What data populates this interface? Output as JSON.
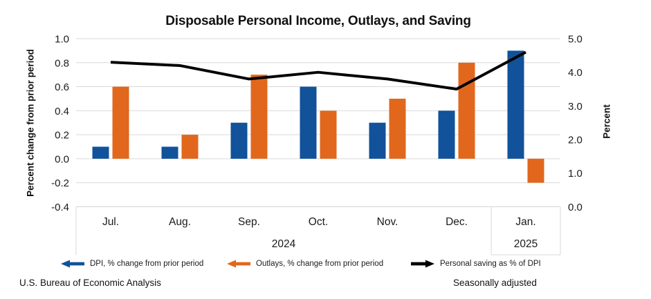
{
  "title": "Disposable Personal Income, Outlays, and Saving",
  "footer": {
    "left": "U.S. Bureau of Economic Analysis",
    "right": "Seasonally adjusted"
  },
  "legend": [
    {
      "label": "DPI, % change from prior period",
      "color": "#11529A",
      "arrow": "left"
    },
    {
      "label": "Outlays, % change from prior period",
      "color": "#E1671D",
      "arrow": "left"
    },
    {
      "label": "Personal saving as % of DPI",
      "color": "#000000",
      "arrow": "right"
    }
  ],
  "chart_data": {
    "type": "bar+line",
    "title": "Disposable Personal Income, Outlays, and Saving",
    "categories": [
      "Jul.",
      "Aug.",
      "Sep.",
      "Oct.",
      "Nov.",
      "Dec.",
      "Jan."
    ],
    "year_groups": [
      {
        "label": "2024",
        "start": 0,
        "end": 5
      },
      {
        "label": "2025",
        "start": 6,
        "end": 6
      }
    ],
    "series": [
      {
        "name": "DPI, % change from prior period",
        "type": "bar",
        "axis": "left",
        "color": "#11529A",
        "values": [
          0.1,
          0.1,
          0.3,
          0.6,
          0.3,
          0.4,
          0.9
        ]
      },
      {
        "name": "Outlays, % change from prior period",
        "type": "bar",
        "axis": "left",
        "color": "#E1671D",
        "values": [
          0.6,
          0.2,
          0.7,
          0.4,
          0.5,
          0.8,
          -0.2
        ]
      },
      {
        "name": "Personal saving as % of DPI",
        "type": "line",
        "axis": "right",
        "color": "#000000",
        "values": [
          4.3,
          4.2,
          3.8,
          4.0,
          3.8,
          3.5,
          4.6
        ]
      }
    ],
    "left_axis": {
      "title": "Percent change from prior period",
      "min": -0.4,
      "max": 1.0,
      "ticks": [
        1.0,
        0.8,
        0.6,
        0.4,
        0.2,
        0.0,
        -0.2,
        -0.4
      ]
    },
    "right_axis": {
      "title": "Percent",
      "min": 0.0,
      "max": 5.0,
      "ticks": [
        5.0,
        4.0,
        3.0,
        2.0,
        1.0,
        0.0
      ]
    },
    "grid": true,
    "gridline_color": "#D9D9D9",
    "legend_position": "bottom"
  }
}
